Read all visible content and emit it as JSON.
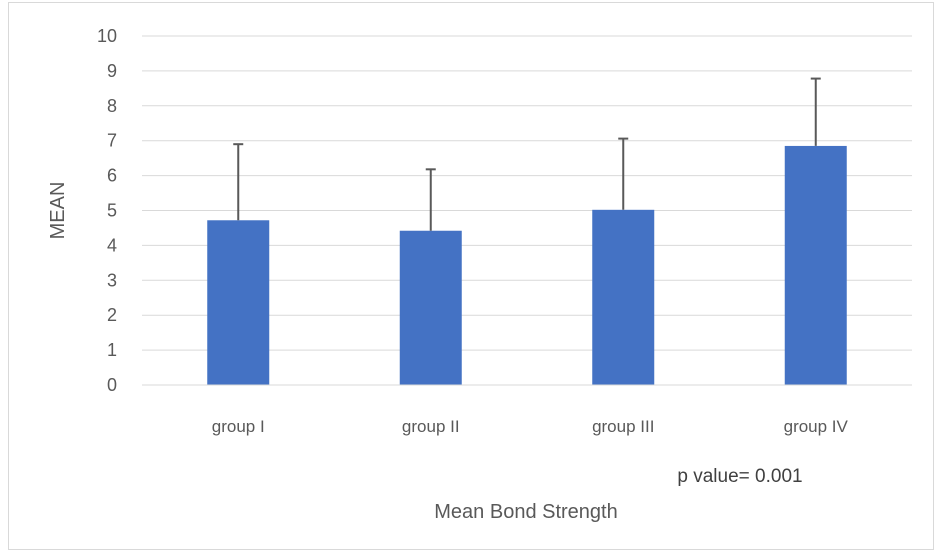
{
  "chart_data": {
    "type": "bar",
    "categories": [
      "group I",
      "group II",
      "group III",
      "group IV"
    ],
    "values": [
      4.72,
      4.42,
      5.02,
      6.85
    ],
    "error_upper": [
      2.18,
      1.76,
      2.04,
      1.93
    ],
    "xlabel": "Mean Bond Strength",
    "ylabel": "MEAN",
    "ylim": [
      0,
      10
    ],
    "yticks": [
      0,
      1,
      2,
      3,
      4,
      5,
      6,
      7,
      8,
      9,
      10
    ],
    "grid": true,
    "bar_color": "#4472c4",
    "error_bar_color": "#595959",
    "gridline_color": "#d9d9d9",
    "annotation": "p value= 0.001"
  }
}
